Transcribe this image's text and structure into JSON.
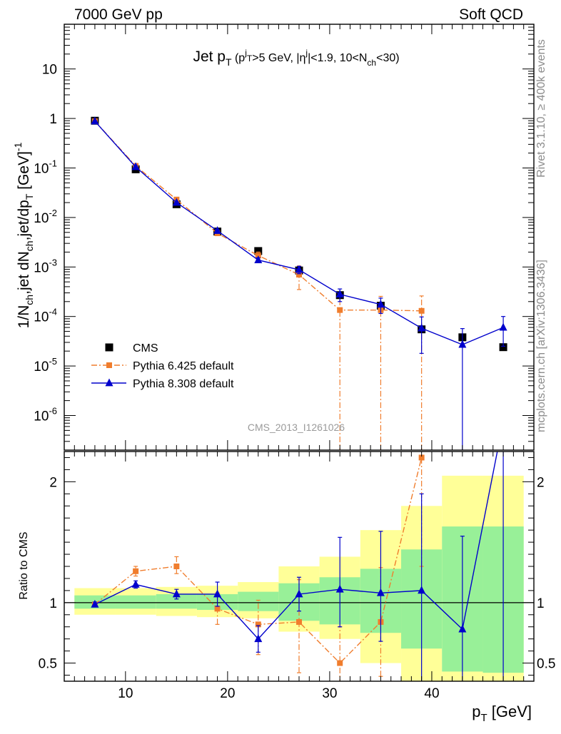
{
  "header": {
    "left": "7000 GeV pp",
    "right": "Soft QCD"
  },
  "side_text": {
    "top": "Rivet 3.1.10, ≥ 400k events",
    "bottom": "mcplots.cern.ch [arXiv:1306.3436]"
  },
  "watermark": "CMS_2013_I1261026",
  "chart_data": [
    {
      "type": "scatter",
      "panel": "main",
      "title": "Jet pT (pTj>5 GeV, |ηj|<1.9, 10<Nch<30)",
      "ylabel": "1/Nch,jet dNch,jet/dpT [GeV]-1",
      "yscale": "log",
      "ylim": [
        2e-07,
        80
      ],
      "xlim": [
        4,
        50
      ],
      "y_ticks": [
        "10",
        "1",
        "10^-1",
        "10^-2",
        "10^-3",
        "10^-4",
        "10^-5",
        "10^-6"
      ],
      "legend_position": "bottom-left",
      "series": [
        {
          "name": "CMS",
          "color": "#000000",
          "marker": "square",
          "x": [
            7,
            11,
            15,
            19,
            23,
            27,
            31,
            35,
            39,
            43,
            47
          ],
          "y": [
            0.9,
            0.094,
            0.0185,
            0.0052,
            0.0021,
            0.00085,
            0.00027,
            0.000165,
            5.5e-05,
            3.8e-05,
            2.4e-05
          ]
        },
        {
          "name": "Pythia 6.425 default",
          "color": "#f07d2d",
          "marker": "square",
          "line": "dashdot",
          "x": [
            7,
            11,
            15,
            19,
            23,
            27,
            31,
            35,
            39
          ],
          "y": [
            0.88,
            0.11,
            0.023,
            0.0048,
            0.0017,
            0.0007,
            0.000135,
            0.000135,
            0.00013
          ],
          "err_low": [
            0.03,
            0.01,
            0.002,
            0.0005,
            0.0003,
            0.00035,
            0.000135,
            0.000135,
            0.00013
          ],
          "err_high": [
            0.03,
            0.01,
            0.002,
            0.0005,
            0.0003,
            0.00035,
            0.00012,
            0.00012,
            0.00013
          ]
        },
        {
          "name": "Pythia 8.308 default",
          "color": "#0000cc",
          "marker": "triangle",
          "line": "solid",
          "x": [
            7,
            11,
            15,
            19,
            23,
            27,
            31,
            35,
            39,
            43,
            47
          ],
          "y": [
            0.88,
            0.105,
            0.02,
            0.0054,
            0.00138,
            0.00088,
            0.00028,
            0.000175,
            5.8e-05,
            2.7e-05,
            6e-05
          ],
          "err_low": [
            0.02,
            0.005,
            0.001,
            0.0003,
            0.00015,
            0.00015,
            8e-05,
            6e-05,
            4e-05,
            2.7e-05,
            3.5e-05
          ],
          "err_high": [
            0.02,
            0.005,
            0.001,
            0.0003,
            0.00015,
            0.00015,
            8e-05,
            6e-05,
            4e-05,
            3e-05,
            4e-05
          ]
        }
      ]
    },
    {
      "type": "line",
      "panel": "ratio",
      "ylabel": "Ratio to CMS",
      "xlabel": "pT [GeV]",
      "xlim": [
        4,
        50
      ],
      "ylim": [
        0.35,
        2.25
      ],
      "x_ticks": [
        "10",
        "20",
        "30",
        "40"
      ],
      "y_ticks": [
        "0.5",
        "1",
        "2"
      ],
      "reference_line": 1,
      "bands": {
        "bins": [
          [
            5,
            9
          ],
          [
            9,
            13
          ],
          [
            13,
            17
          ],
          [
            17,
            21
          ],
          [
            21,
            25
          ],
          [
            25,
            29
          ],
          [
            29,
            33
          ],
          [
            33,
            37
          ],
          [
            37,
            41
          ],
          [
            41,
            45
          ],
          [
            45,
            49
          ]
        ],
        "stat": [
          [
            0.95,
            1.06
          ],
          [
            0.95,
            1.06
          ],
          [
            0.95,
            1.07
          ],
          [
            0.94,
            1.07
          ],
          [
            0.93,
            1.09
          ],
          [
            0.85,
            1.16
          ],
          [
            0.82,
            1.21
          ],
          [
            0.75,
            1.28
          ],
          [
            0.62,
            1.44
          ],
          [
            0.43,
            1.63
          ],
          [
            0.42,
            1.63
          ]
        ],
        "total": [
          [
            0.9,
            1.12
          ],
          [
            0.9,
            1.12
          ],
          [
            0.89,
            1.13
          ],
          [
            0.88,
            1.14
          ],
          [
            0.87,
            1.17
          ],
          [
            0.76,
            1.3
          ],
          [
            0.7,
            1.38
          ],
          [
            0.5,
            1.6
          ],
          [
            0.2,
            1.8
          ],
          [
            0.05,
            2.05
          ],
          [
            0.05,
            2.05
          ]
        ],
        "stat_color": "#98f098",
        "total_color": "#ffff98"
      },
      "series": [
        {
          "name": "Pythia 6.425 default",
          "color": "#f07d2d",
          "marker": "square",
          "line": "dashdot",
          "x": [
            7,
            11,
            15,
            19,
            23,
            27,
            31,
            35,
            39
          ],
          "y": [
            0.985,
            1.26,
            1.3,
            0.95,
            0.82,
            0.84,
            0.5,
            0.84,
            2.2
          ],
          "err_low": [
            0.02,
            0.04,
            0.06,
            0.13,
            0.25,
            0.42,
            0.3,
            0.45,
            0.9
          ],
          "err_high": [
            0.02,
            0.04,
            0.08,
            0.13,
            0.2,
            0.35,
            0.3,
            0.45,
            0.9
          ]
        },
        {
          "name": "Pythia 8.308 default",
          "color": "#0000cc",
          "marker": "triangle",
          "line": "solid",
          "x": [
            7,
            11,
            15,
            19,
            23,
            27,
            31,
            35,
            39,
            43,
            47
          ],
          "y": [
            0.985,
            1.15,
            1.07,
            1.07,
            0.7,
            1.07,
            1.11,
            1.08,
            1.1,
            0.78,
            2.5
          ],
          "err_low": [
            0.02,
            0.03,
            0.04,
            0.1,
            0.11,
            0.14,
            0.31,
            0.4,
            0.8,
            0.78,
            2.5
          ],
          "err_high": [
            0.02,
            0.03,
            0.04,
            0.1,
            0.11,
            0.14,
            0.43,
            0.51,
            0.8,
            0.77,
            0.5
          ]
        }
      ]
    }
  ]
}
